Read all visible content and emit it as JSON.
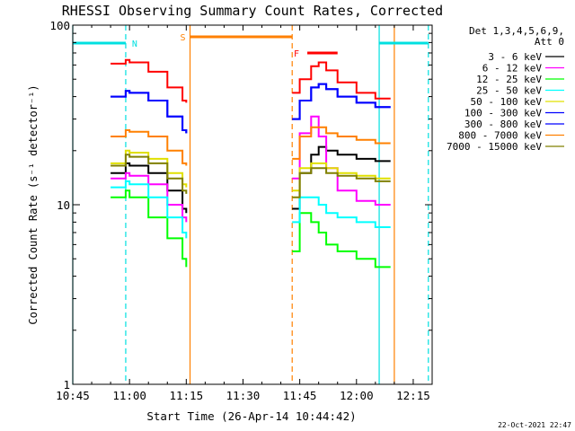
{
  "chart_data": {
    "type": "line",
    "title": "RHESSI Observing Summary Count Rates, Corrected",
    "xlabel": "Start Time (26-Apr-14 10:44:42)",
    "ylabel": "Corrected Count Rate (s⁻¹ detector⁻¹)",
    "y_scale": "log",
    "ylim": [
      1,
      100
    ],
    "xlim_minutes_after_10_45": [
      0,
      95
    ],
    "xticks": [
      "10:45",
      "11:00",
      "11:15",
      "11:30",
      "11:45",
      "12:00",
      "12:15"
    ],
    "yticks": [
      "1",
      "10",
      "100"
    ],
    "legend_header": [
      "Det 1,3,4,5,6,9,",
      "Att 0"
    ],
    "legend_position": "right, outside plot",
    "footer": "22-Oct-2021 22:47",
    "flag_bars": [
      {
        "label": "N",
        "color": "#00e0e0",
        "segments": [
          [
            "10:45",
            "10:59"
          ],
          [
            "12:06",
            "12:19"
          ]
        ]
      },
      {
        "label": "S",
        "color": "#ff8000",
        "segments": [
          [
            "11:16",
            "11:43"
          ]
        ]
      },
      {
        "label": "F",
        "color": "#ff0000",
        "segments": [
          [
            "11:47",
            "11:55"
          ]
        ]
      }
    ],
    "vertical_lines": [
      {
        "time": "10:45",
        "color": "#00e0e0",
        "style": "solid"
      },
      {
        "time": "10:59",
        "color": "#00e0e0",
        "style": "dashed"
      },
      {
        "time": "11:16",
        "color": "#ff8000",
        "style": "solid"
      },
      {
        "time": "11:43",
        "color": "#ff8000",
        "style": "dashed"
      },
      {
        "time": "12:06",
        "color": "#00e0e0",
        "style": "solid"
      },
      {
        "time": "12:10",
        "color": "#ff8000",
        "style": "solid"
      },
      {
        "time": "12:19",
        "color": "#00e0e0",
        "style": "dashed"
      }
    ],
    "x_segments": [
      [
        "10:55",
        "10:59",
        "11:00",
        "11:05",
        "11:10",
        "11:14",
        "11:15"
      ],
      [
        "11:43",
        "11:45",
        "11:48",
        "11:50",
        "11:52",
        "11:55",
        "12:00",
        "12:05",
        "12:09"
      ]
    ],
    "series": [
      {
        "name": "3 - 6 keV",
        "color": "#000000",
        "segments": [
          [
            15,
            17,
            16.5,
            15,
            12,
            9.5,
            9
          ],
          [
            9.5,
            15,
            19,
            21,
            20,
            19,
            18,
            17.5,
            17.5
          ]
        ]
      },
      {
        "name": "6 - 12 keV",
        "color": "#ff00ff",
        "segments": [
          [
            14,
            15,
            14.5,
            13,
            10,
            8.5,
            8
          ],
          [
            14,
            25,
            31,
            24,
            16,
            12,
            10.5,
            10,
            10
          ]
        ]
      },
      {
        "name": "12 - 25 keV",
        "color": "#00ff00",
        "segments": [
          [
            11,
            12,
            11,
            8.5,
            6.5,
            5,
            4.5
          ],
          [
            5.5,
            9,
            8,
            7,
            6,
            5.5,
            5,
            4.5,
            4.5
          ]
        ]
      },
      {
        "name": "25 - 50 keV",
        "color": "#00ffff",
        "segments": [
          [
            12.5,
            13.5,
            13,
            11,
            8.5,
            7,
            6.5
          ],
          [
            8,
            11,
            11,
            10,
            9,
            8.5,
            8,
            7.5,
            7.5
          ]
        ]
      },
      {
        "name": "50 - 100 keV",
        "color": "#e0e000",
        "segments": [
          [
            17,
            20,
            19.5,
            18,
            15,
            13,
            12.5
          ],
          [
            12,
            16,
            17,
            17,
            16,
            15,
            14.5,
            14,
            14
          ]
        ]
      },
      {
        "name": "100 - 300 keV",
        "color": "#0000ff",
        "segments": [
          [
            40,
            43,
            42,
            38,
            31,
            26,
            25
          ],
          [
            30,
            38,
            45,
            47,
            44,
            40,
            37,
            35,
            35
          ]
        ]
      },
      {
        "name": "300 - 800 keV",
        "color": "#0000ff",
        "segments": [
          [
            40,
            43,
            42,
            38,
            31,
            26,
            25
          ],
          [
            30,
            38,
            45,
            47,
            44,
            40,
            37,
            35,
            35
          ]
        ]
      },
      {
        "name": "800 - 7000 keV",
        "color": "#ff8000",
        "segments": [
          [
            24,
            26,
            25.5,
            24,
            20,
            17,
            16.5
          ],
          [
            18,
            24,
            27,
            27,
            25,
            24,
            23,
            22,
            22
          ]
        ]
      },
      {
        "name": "7000 - 15000 keV",
        "color": "#808000",
        "segments": [
          [
            16.5,
            19,
            18.5,
            17,
            14,
            12,
            11.5
          ],
          [
            11,
            15,
            16,
            16,
            15,
            14.5,
            14,
            13.5,
            13.5
          ]
        ]
      },
      {
        "name": "",
        "color": "#ff0000",
        "segments": [
          [
            61,
            64,
            62,
            55,
            45,
            38,
            37
          ],
          [
            42,
            50,
            59,
            62,
            56,
            48,
            42,
            39,
            39
          ]
        ]
      }
    ]
  }
}
